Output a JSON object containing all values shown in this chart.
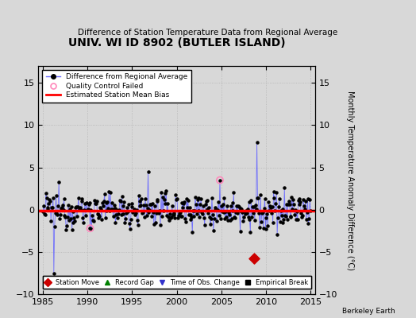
{
  "title": "UNIV. WI ID 8902 (BUTLER ISLAND)",
  "subtitle": "Difference of Station Temperature Data from Regional Average",
  "ylabel": "Monthly Temperature Anomaly Difference (°C)",
  "xlim": [
    1984.5,
    2015.5
  ],
  "ylim": [
    -10,
    17
  ],
  "yticks_left": [
    -10,
    -5,
    0,
    5,
    10,
    15
  ],
  "yticks_right": [
    -10,
    -5,
    0,
    5,
    10,
    15
  ],
  "xticks": [
    1985,
    1990,
    1995,
    2000,
    2005,
    2010,
    2015
  ],
  "background_color": "#d8d8d8",
  "plot_bg_color": "#d8d8d8",
  "line_color": "#6666ff",
  "dot_color": "#000000",
  "bias_color": "#ff0000",
  "bias_value": -0.1,
  "qc_color": "#ff88bb",
  "station_move_year": 2008.7,
  "station_move_value": -5.8,
  "berkeley_earth_text": "Berkeley Earth",
  "seed": 12345,
  "n_points": 370
}
